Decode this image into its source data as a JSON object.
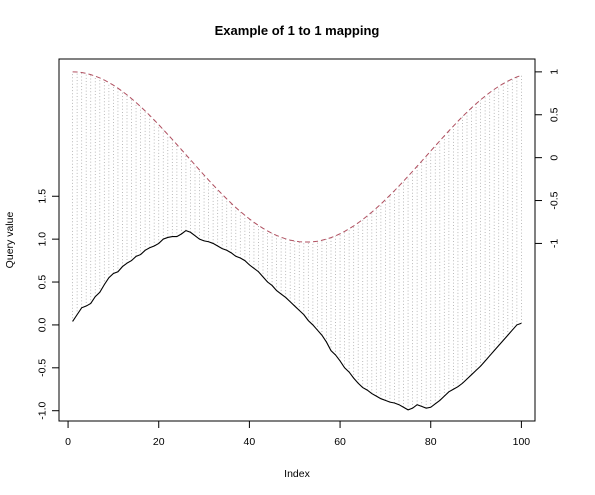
{
  "chart_data": {
    "type": "line",
    "title": "Example of 1 to 1 mapping",
    "xlabel": "Index",
    "ylabel": "Query value",
    "xlim": [
      -2,
      103
    ],
    "x_ticks": [
      0,
      20,
      40,
      60,
      80,
      100
    ],
    "x_tick_labels": [
      "0",
      "20",
      "40",
      "60",
      "80",
      "100"
    ],
    "y_left": {
      "lim": [
        -1.12,
        3.1
      ],
      "ticks": [
        -1.0,
        -0.5,
        0.0,
        0.5,
        1.0,
        1.5
      ],
      "tick_labels": [
        "-1.0",
        "-0.5",
        "0.0",
        "0.5",
        "1.0",
        "1.5"
      ]
    },
    "y_right": {
      "lim": [
        -3.07,
        1.15
      ],
      "ticks": [
        -1,
        -0.5,
        0,
        0.5,
        1
      ],
      "tick_labels": [
        "-1",
        "-0.5",
        "0",
        "0.5",
        "1"
      ]
    },
    "grid": false,
    "legend": "none",
    "series": [
      {
        "role": "query",
        "axis": "left",
        "style": "solid",
        "color": "#000000",
        "x": [
          1,
          2,
          3,
          4,
          5,
          6,
          7,
          8,
          9,
          10,
          11,
          12,
          13,
          14,
          15,
          16,
          17,
          18,
          19,
          20,
          21,
          22,
          23,
          24,
          25,
          26,
          27,
          28,
          29,
          30,
          31,
          32,
          33,
          34,
          35,
          36,
          37,
          38,
          39,
          40,
          41,
          42,
          43,
          44,
          45,
          46,
          47,
          48,
          49,
          50,
          51,
          52,
          53,
          54,
          55,
          56,
          57,
          58,
          59,
          60,
          61,
          62,
          63,
          64,
          65,
          66,
          67,
          68,
          69,
          70,
          71,
          72,
          73,
          74,
          75,
          76,
          77,
          78,
          79,
          80,
          81,
          82,
          83,
          84,
          85,
          86,
          87,
          88,
          89,
          90,
          91,
          92,
          93,
          94,
          95,
          96,
          97,
          98,
          99,
          100
        ],
        "values": [
          0.04,
          0.12,
          0.2,
          0.22,
          0.25,
          0.33,
          0.38,
          0.47,
          0.55,
          0.6,
          0.62,
          0.68,
          0.72,
          0.75,
          0.8,
          0.82,
          0.87,
          0.9,
          0.92,
          0.95,
          1.0,
          1.02,
          1.03,
          1.03,
          1.06,
          1.1,
          1.08,
          1.04,
          1.0,
          0.98,
          0.97,
          0.95,
          0.92,
          0.89,
          0.87,
          0.84,
          0.8,
          0.78,
          0.75,
          0.7,
          0.66,
          0.62,
          0.56,
          0.5,
          0.46,
          0.4,
          0.36,
          0.32,
          0.27,
          0.22,
          0.17,
          0.12,
          0.05,
          0.0,
          -0.06,
          -0.12,
          -0.2,
          -0.3,
          -0.35,
          -0.42,
          -0.5,
          -0.55,
          -0.62,
          -0.68,
          -0.73,
          -0.76,
          -0.8,
          -0.83,
          -0.86,
          -0.88,
          -0.9,
          -0.91,
          -0.93,
          -0.96,
          -0.99,
          -0.97,
          -0.93,
          -0.95,
          -0.97,
          -0.96,
          -0.92,
          -0.88,
          -0.83,
          -0.78,
          -0.75,
          -0.72,
          -0.68,
          -0.63,
          -0.58,
          -0.53,
          -0.48,
          -0.42,
          -0.36,
          -0.3,
          -0.24,
          -0.18,
          -0.12,
          -0.06,
          0.0,
          0.02
        ]
      },
      {
        "role": "reference",
        "axis": "right",
        "style": "dashed",
        "color": "#b05060",
        "x": [
          1,
          2,
          3,
          4,
          5,
          6,
          7,
          8,
          9,
          10,
          11,
          12,
          13,
          14,
          15,
          16,
          17,
          18,
          19,
          20,
          21,
          22,
          23,
          24,
          25,
          26,
          27,
          28,
          29,
          30,
          31,
          32,
          33,
          34,
          35,
          36,
          37,
          38,
          39,
          40,
          41,
          42,
          43,
          44,
          45,
          46,
          47,
          48,
          49,
          50,
          51,
          52,
          53,
          54,
          55,
          56,
          57,
          58,
          59,
          60,
          61,
          62,
          63,
          64,
          65,
          66,
          67,
          68,
          69,
          70,
          71,
          72,
          73,
          74,
          75,
          76,
          77,
          78,
          79,
          80,
          81,
          82,
          83,
          84,
          85,
          86,
          87,
          88,
          89,
          90,
          91,
          92,
          93,
          94,
          95,
          96,
          97,
          98,
          99,
          100
        ],
        "values": [
          1.0,
          0.998,
          0.992,
          0.982,
          0.968,
          0.95,
          0.929,
          0.904,
          0.876,
          0.845,
          0.81,
          0.772,
          0.732,
          0.688,
          0.643,
          0.595,
          0.545,
          0.493,
          0.439,
          0.384,
          0.327,
          0.27,
          0.212,
          0.153,
          0.094,
          0.034,
          -0.025,
          -0.085,
          -0.144,
          -0.203,
          -0.261,
          -0.318,
          -0.374,
          -0.428,
          -0.481,
          -0.532,
          -0.581,
          -0.628,
          -0.672,
          -0.714,
          -0.754,
          -0.79,
          -0.824,
          -0.855,
          -0.883,
          -0.907,
          -0.928,
          -0.946,
          -0.961,
          -0.972,
          -0.98,
          -0.984,
          -0.984,
          -0.981,
          -0.974,
          -0.963,
          -0.949,
          -0.932,
          -0.911,
          -0.887,
          -0.86,
          -0.829,
          -0.796,
          -0.76,
          -0.721,
          -0.679,
          -0.635,
          -0.589,
          -0.541,
          -0.49,
          -0.438,
          -0.385,
          -0.33,
          -0.274,
          -0.217,
          -0.159,
          -0.1,
          -0.041,
          0.018,
          0.078,
          0.137,
          0.196,
          0.254,
          0.312,
          0.368,
          0.424,
          0.478,
          0.53,
          0.58,
          0.628,
          0.674,
          0.717,
          0.758,
          0.796,
          0.831,
          0.863,
          0.892,
          0.918,
          0.941,
          0.96
        ]
      }
    ],
    "mapping_lines": {
      "style": "dotted",
      "color": "#aaaaaa",
      "pairs": "index i of query series to index i of reference series"
    }
  }
}
